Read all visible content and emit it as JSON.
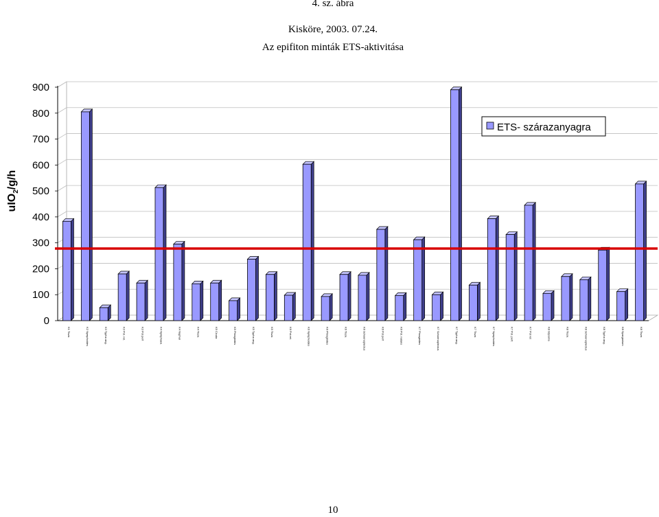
{
  "header": {
    "figure_label": "4. sz. ábra",
    "place_date": "Kisköre, 2003. 07.24.",
    "title": "Az  epifiton minták ETS-aktivitása"
  },
  "page_number": "10",
  "colors": {
    "bar_front": "#9999ff",
    "bar_side": "#3f3f8c",
    "bar_top": "#c4c4ff",
    "reference_line": "#d80000",
    "grid": "#bdbdbd"
  },
  "chart_data": {
    "type": "bar",
    "title": "Az  epifiton minták ETS-aktivitása",
    "ylabel": "uIO2/g/h",
    "ylabel_main": "uIO",
    "ylabel_sub": "2",
    "ylabel_rest": "/g/h",
    "ylim": [
      0,
      900
    ],
    "yticks": [
      "0",
      "100",
      "200",
      "300",
      "400",
      "500",
      "600",
      "700",
      "800",
      "900"
    ],
    "grid": true,
    "legend_position": "top-right",
    "reference_line": 278,
    "categories": [
      "K1 Tisza",
      "K2 Nymphoides",
      "K3 Typha ang.",
      "K3 Pot. ret.",
      "K3 Pot perf",
      "K4 Nymphaea",
      "K4 Nuphar",
      "K4 Tisza",
      "K5 Cicuta",
      "K5 Phragmites",
      "K5 Typha ang.",
      "K5 Tisza",
      "K6 Pot.ret.",
      "K6 Nymphoides",
      "K6 Phragmites",
      "K6 Tisza",
      "K6 Schoenoplectus",
      "K6 Pot perf",
      "K6 Pot. natans",
      "K7 Phragmites",
      "K7 Schoenoplectus",
      "K7 Typha ang.",
      "K7 Tisza",
      "K7 Nymphoides",
      "K7 Pot. perf.",
      "K7 Pot ret",
      "K8 Glyceria",
      "K8 Tisza",
      "K8 Schoenoplectus",
      "K8 Typha ang.",
      "K8 Sparganium",
      "K8 Tisza"
    ],
    "series": [
      {
        "name": "ETS- szárazanyagra",
        "values": [
          383,
          805,
          50,
          180,
          145,
          513,
          295,
          142,
          145,
          77,
          237,
          178,
          98,
          603,
          93,
          178,
          175,
          352,
          97,
          312,
          100,
          890,
          137,
          393,
          332,
          445,
          105,
          170,
          158,
          272,
          112,
          527
        ]
      }
    ]
  }
}
